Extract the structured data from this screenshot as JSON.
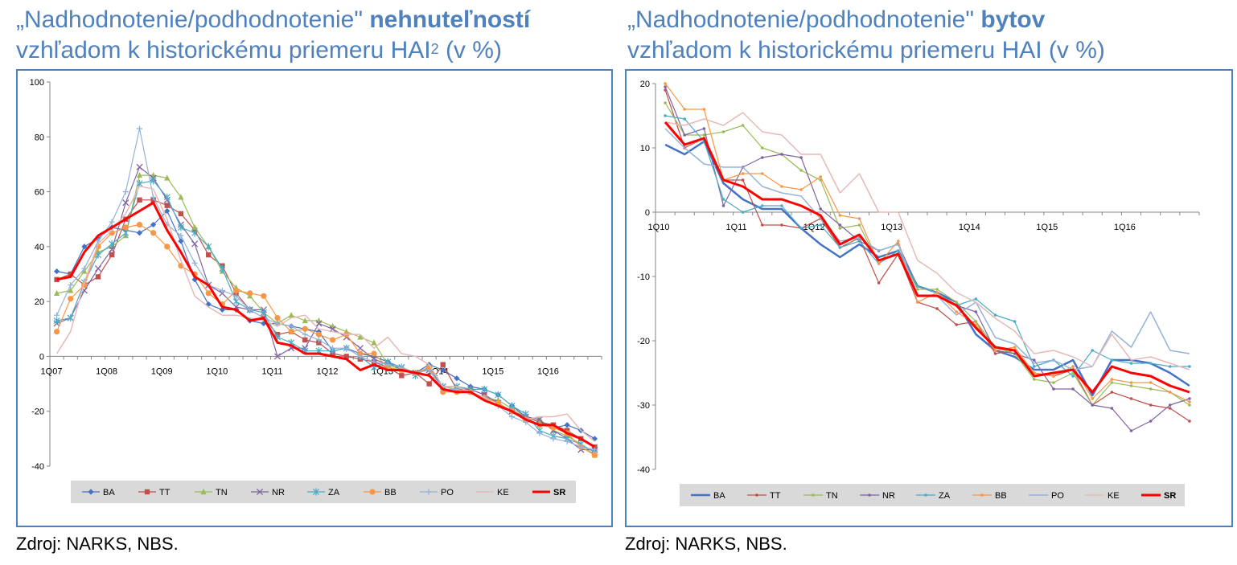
{
  "left": {
    "title_prefix": "„Nadhodnotenie/podhodnotenie\" ",
    "title_bold": "nehnuteľností",
    "title_line2": "vzhľadom k historickému priemeru HAI",
    "title_sup": "2",
    "title_suffix": " (v %)",
    "source": "Zdroj: NARKS, NBS."
  },
  "right": {
    "title_prefix": "„Nadhodnotenie/podhodnotenie\" ",
    "title_bold": "bytov",
    "title_line2": "vzhľadom k historickému priemeru HAI (v %)",
    "source": "Zdroj: NARKS, NBS."
  },
  "chart_data": [
    {
      "type": "line",
      "title": "„Nadhodnotenie/podhodnotenie\" nehnuteľností vzhľadom k historickému priemeru HAI2 (v %)",
      "ylim": [
        -40,
        100
      ],
      "yticks": [
        -40,
        -20,
        0,
        20,
        40,
        60,
        80,
        100
      ],
      "x_tick_labels": [
        "1Q07",
        "1Q08",
        "1Q09",
        "1Q10",
        "1Q11",
        "1Q12",
        "1Q13",
        "1Q14",
        "1Q15",
        "1Q16"
      ],
      "n_points": 40,
      "legend_position": "bottom",
      "series": [
        {
          "name": "BA",
          "color": "#4472c4",
          "marker": "diamond",
          "width": 1.2,
          "values": [
            31,
            30,
            40,
            43,
            47,
            46,
            45,
            48,
            53,
            42,
            28,
            19,
            17,
            17,
            13,
            12,
            12,
            11,
            10,
            9,
            2,
            3,
            1,
            0,
            -2,
            -5,
            -6,
            -3,
            -5,
            -8,
            -11,
            -12,
            -14,
            -18,
            -22,
            -24,
            -26,
            -25,
            -27,
            -30
          ]
        },
        {
          "name": "TT",
          "color": "#c0504d",
          "marker": "square",
          "width": 1.2,
          "values": [
            28,
            30,
            26,
            29,
            37,
            50,
            57,
            57,
            55,
            52,
            46,
            37,
            33,
            23,
            17,
            14,
            8,
            9,
            6,
            5,
            1,
            0,
            -1,
            -2,
            -4,
            -7,
            -6,
            -10,
            -3,
            -12,
            -12,
            -14,
            -17,
            -20,
            -22,
            -24,
            -25,
            -27,
            -30,
            -33
          ]
        },
        {
          "name": "TN",
          "color": "#9bbb59",
          "marker": "triangle",
          "width": 1.2,
          "values": [
            23,
            24,
            31,
            38,
            40,
            44,
            66,
            66,
            65,
            58,
            47,
            40,
            31,
            25,
            22,
            16,
            12,
            15,
            13,
            13,
            11,
            9,
            7,
            5,
            -3,
            -5,
            -6,
            -4,
            -11,
            -12,
            -13,
            -15,
            -16,
            -19,
            -22,
            -23,
            -27,
            -29,
            -32,
            -36
          ]
        },
        {
          "name": "NR",
          "color": "#8064a2",
          "marker": "x",
          "width": 1.2,
          "values": [
            12,
            14,
            24,
            32,
            39,
            56,
            69,
            65,
            57,
            48,
            41,
            26,
            23,
            18,
            17,
            17,
            0,
            3,
            3,
            12,
            10,
            7,
            3,
            -1,
            -3,
            -4,
            -6,
            -5,
            -11,
            -11,
            -12,
            -14,
            -17,
            -20,
            -22,
            -23,
            -27,
            -30,
            -34,
            -34
          ]
        },
        {
          "name": "ZA",
          "color": "#4bacc6",
          "marker": "star",
          "width": 1.2,
          "values": [
            13,
            14,
            27,
            37,
            41,
            45,
            63,
            64,
            58,
            47,
            45,
            40,
            32,
            20,
            17,
            16,
            7,
            5,
            2,
            2,
            2,
            3,
            0,
            -4,
            -2,
            -4,
            -7,
            -4,
            -11,
            -11,
            -12,
            -12,
            -14,
            -18,
            -21,
            -27,
            -29,
            -30,
            -32,
            -35
          ]
        },
        {
          "name": "BB",
          "color": "#f79646",
          "marker": "circle",
          "width": 1.2,
          "values": [
            9,
            21,
            26,
            40,
            45,
            47,
            48,
            45,
            40,
            33,
            30,
            23,
            19,
            24,
            23,
            22,
            14,
            9,
            10,
            8,
            6,
            8,
            1,
            1,
            -4,
            -5,
            -6,
            -4,
            -13,
            -13,
            -13,
            -15,
            -17,
            -20,
            -23,
            -25,
            -26,
            -28,
            -33,
            -36
          ]
        },
        {
          "name": "PO",
          "color": "#95b3d7",
          "marker": "plus",
          "width": 1.2,
          "values": [
            15,
            26,
            32,
            42,
            49,
            60,
            83,
            58,
            48,
            44,
            34,
            26,
            24,
            22,
            17,
            14,
            12,
            11,
            8,
            6,
            3,
            3,
            0,
            -2,
            -3,
            -4,
            -6,
            -5,
            -12,
            -12,
            -13,
            -15,
            -18,
            -22,
            -24,
            -28,
            -30,
            -31,
            -33,
            -34
          ]
        },
        {
          "name": "KE",
          "color": "#e6b9b8",
          "marker": "none",
          "width": 1.5,
          "values": [
            1,
            9,
            27,
            41,
            46,
            52,
            62,
            61,
            50,
            35,
            22,
            18,
            15,
            15,
            14,
            13,
            11,
            14,
            15,
            10,
            9,
            8,
            8,
            3,
            7,
            1,
            0,
            -3,
            -11,
            -11,
            -13,
            -15,
            -18,
            -20,
            -23,
            -22,
            -22,
            -21,
            -27,
            -31
          ]
        },
        {
          "name": "SR",
          "color": "#ff0000",
          "marker": "none",
          "width": 3,
          "values": [
            28,
            29,
            38,
            44,
            47,
            50,
            53,
            56,
            46,
            38,
            29,
            26,
            18,
            17,
            13,
            14,
            5,
            4,
            1,
            1,
            0,
            -1,
            -5,
            -3,
            -5,
            -5,
            -6,
            -7,
            -12,
            -13,
            -13,
            -16,
            -18,
            -20,
            -23,
            -25,
            -25,
            -28,
            -30,
            -33
          ]
        }
      ]
    },
    {
      "type": "line",
      "title": "„Nadhodnotenie/podhodnotenie\" bytov vzhľadom k historickému priemeru HAI (v %)",
      "ylim": [
        -40,
        20
      ],
      "yticks": [
        -40,
        -30,
        -20,
        -10,
        0,
        10,
        20
      ],
      "x_tick_labels": [
        "1Q10",
        "1Q11",
        "1Q12",
        "1Q13",
        "1Q14",
        "1Q15",
        "1Q16"
      ],
      "n_points": 28,
      "legend_position": "bottom",
      "series": [
        {
          "name": "BA",
          "color": "#4472c4",
          "marker": "none",
          "width": 2.5,
          "values": [
            10.5,
            9,
            11,
            4.5,
            2,
            0.5,
            0.5,
            -2.5,
            -5,
            -7,
            -5,
            -7,
            -6,
            -11.5,
            -12.5,
            -14,
            -19,
            -21.5,
            -22.5,
            -24.5,
            -24.5,
            -23,
            -28.5,
            -23,
            -23,
            -23.5,
            -25,
            -27
          ]
        },
        {
          "name": "TT",
          "color": "#c0504d",
          "marker": "dot",
          "width": 1.2,
          "values": [
            19,
            10,
            11.5,
            5,
            5,
            -2,
            -2,
            -2.5,
            -1,
            -5.5,
            -4,
            -11,
            -6.5,
            -14,
            -15,
            -17.5,
            -17,
            -22,
            -21.5,
            -25,
            -25.5,
            -24.5,
            -30,
            -28,
            -29,
            -30,
            -30.5,
            -32.5
          ]
        },
        {
          "name": "TN",
          "color": "#9bbb59",
          "marker": "dot",
          "width": 1.2,
          "values": [
            17,
            12,
            12,
            12.5,
            13.5,
            10,
            9,
            6.5,
            5,
            -2.5,
            -2,
            -8,
            -6,
            -12,
            -12,
            -14,
            -17,
            -21,
            -22,
            -26,
            -26.5,
            -25,
            -30,
            -26.5,
            -27,
            -27.5,
            -28,
            -30
          ]
        },
        {
          "name": "NR",
          "color": "#8064a2",
          "marker": "dot",
          "width": 1.2,
          "values": [
            19.5,
            12,
            13,
            1,
            7,
            8.5,
            9,
            8.5,
            0.5,
            -2,
            -4.5,
            -6,
            -5,
            -11.5,
            -12.5,
            -14.5,
            -15.5,
            -21.5,
            -22,
            -23,
            -27.5,
            -27.5,
            -30,
            -30.5,
            -34,
            -32.5,
            -30,
            -29
          ]
        },
        {
          "name": "ZA",
          "color": "#4bacc6",
          "marker": "dot",
          "width": 1.2,
          "values": [
            15,
            14.5,
            11,
            2,
            0,
            1,
            1,
            -2.5,
            -2,
            -5.5,
            -4.5,
            -8,
            -6,
            -11.5,
            -12.5,
            -14.5,
            -13.5,
            -16,
            -17,
            -24,
            -23,
            -25.5,
            -21.5,
            -23,
            -23.5,
            -23.5,
            -24,
            -24
          ]
        },
        {
          "name": "BB",
          "color": "#f79646",
          "marker": "dot",
          "width": 1.2,
          "values": [
            20,
            16,
            16,
            5,
            6,
            6,
            4,
            3.5,
            5.5,
            -0.5,
            -1,
            -8,
            -4.5,
            -14,
            -12.5,
            -15.5,
            -17.5,
            -21.5,
            -21,
            -25,
            -25.5,
            -24,
            -29,
            -26,
            -26.5,
            -26.5,
            -28,
            -29.5
          ]
        },
        {
          "name": "PO",
          "color": "#95b3d7",
          "marker": "none",
          "width": 1.5,
          "values": [
            13,
            10,
            7.5,
            7,
            7,
            4,
            3,
            2.5,
            -1,
            -4.5,
            -4,
            -6,
            -5,
            -13,
            -13,
            -16,
            -14,
            -19.5,
            -20.5,
            -23.5,
            -23,
            -24.5,
            -24,
            -18.5,
            -21,
            -15.5,
            -21.5,
            -22
          ]
        },
        {
          "name": "KE",
          "color": "#e6b9b8",
          "marker": "none",
          "width": 1.5,
          "values": [
            14,
            13.5,
            14.5,
            13.5,
            15.5,
            12.5,
            12,
            9,
            9,
            3,
            6,
            0,
            0,
            -7.5,
            -9.5,
            -12.5,
            -14,
            -16.5,
            -18.5,
            -22,
            -21.5,
            -22.5,
            -24,
            -19,
            -23,
            -22.5,
            -23.5,
            -24.5
          ]
        },
        {
          "name": "SR",
          "color": "#ff0000",
          "marker": "none",
          "width": 3,
          "values": [
            14,
            10.5,
            11.5,
            5,
            4,
            2,
            2,
            1,
            -0.5,
            -5,
            -3.5,
            -7.5,
            -6.5,
            -13,
            -13,
            -14.5,
            -18,
            -21,
            -21.5,
            -25.5,
            -25,
            -24.5,
            -28,
            -24,
            -25,
            -25.5,
            -27,
            -28
          ]
        }
      ]
    }
  ]
}
